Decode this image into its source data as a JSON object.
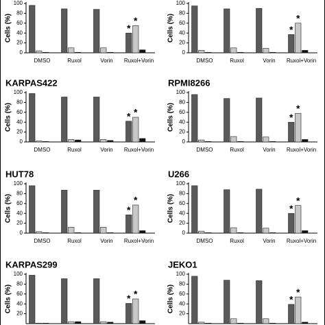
{
  "chart_data": [
    {
      "type": "bar",
      "y_label": "Cells (%)",
      "categories": [
        "DMSO",
        "Ruxol",
        "Vorin",
        "Ruxol+Vorin"
      ],
      "ylim": [
        0,
        100
      ],
      "yticks": [
        0,
        20,
        40,
        60,
        80,
        100
      ],
      "series": [
        {
          "color": "#5a5a5a",
          "values": [
            96,
            89,
            88,
            40
          ],
          "markers": [
            null,
            null,
            null,
            "*"
          ]
        },
        {
          "color": "#c8c8c8",
          "values": [
            4,
            10,
            10,
            55
          ],
          "markers": [
            null,
            null,
            null,
            "*"
          ]
        },
        {
          "color": "#111111",
          "values": [
            1,
            1,
            1,
            6
          ],
          "markers": [
            null,
            null,
            null,
            null
          ]
        }
      ]
    },
    {
      "type": "bar",
      "y_label": "Cells (%)",
      "categories": [
        "DMSO",
        "Ruxol",
        "Vorin",
        "Ruxol+Vorin"
      ],
      "ylim": [
        0,
        100
      ],
      "yticks": [
        0,
        20,
        40,
        60,
        80,
        100
      ],
      "series": [
        {
          "color": "#5a5a5a",
          "values": [
            95,
            89,
            90,
            37
          ],
          "markers": [
            null,
            null,
            null,
            "*"
          ]
        },
        {
          "color": "#c8c8c8",
          "values": [
            5,
            10,
            9,
            60
          ],
          "markers": [
            null,
            null,
            null,
            "*"
          ]
        },
        {
          "color": "#111111",
          "values": [
            1,
            1,
            1,
            5
          ],
          "markers": [
            null,
            null,
            null,
            null
          ]
        }
      ]
    },
    {
      "type": "bar",
      "title": "KARPAS422",
      "y_label": "Cells (%)",
      "categories": [
        "DMSO",
        "Ruxol",
        "Vorin",
        "Ruxol+Vorin"
      ],
      "ylim": [
        0,
        100
      ],
      "yticks": [
        0,
        20,
        40,
        60,
        80,
        100
      ],
      "series": [
        {
          "color": "#5a5a5a",
          "values": [
            98,
            91,
            91,
            42
          ],
          "markers": [
            null,
            null,
            null,
            "*"
          ]
        },
        {
          "color": "#c8c8c8",
          "values": [
            2,
            5,
            5,
            50
          ],
          "markers": [
            null,
            null,
            null,
            "*"
          ]
        },
        {
          "color": "#111111",
          "values": [
            1,
            4,
            3,
            7
          ],
          "markers": [
            null,
            null,
            null,
            null
          ]
        }
      ]
    },
    {
      "type": "bar",
      "title": "RPMI8266",
      "y_label": "Cells (%)",
      "categories": [
        "DMSO",
        "Ruxol",
        "Vorin",
        "Ruxol+Vorin"
      ],
      "ylim": [
        0,
        100
      ],
      "yticks": [
        0,
        20,
        40,
        60,
        80,
        100
      ],
      "series": [
        {
          "color": "#5a5a5a",
          "values": [
            96,
            88,
            89,
            40
          ],
          "markers": [
            null,
            null,
            null,
            "*"
          ]
        },
        {
          "color": "#c8c8c8",
          "values": [
            4,
            11,
            10,
            58
          ],
          "markers": [
            null,
            null,
            null,
            "*"
          ]
        },
        {
          "color": "#111111",
          "values": [
            1,
            1,
            1,
            5
          ],
          "markers": [
            null,
            null,
            null,
            null
          ]
        }
      ]
    },
    {
      "type": "bar",
      "title": "HUT78",
      "y_label": "Cells (%)",
      "categories": [
        "DMSO",
        "Ruxol",
        "Vorin",
        "Ruxol+Vorin"
      ],
      "ylim": [
        0,
        100
      ],
      "yticks": [
        0,
        20,
        40,
        60,
        80,
        100
      ],
      "series": [
        {
          "color": "#5a5a5a",
          "values": [
            96,
            87,
            87,
            37
          ],
          "markers": [
            null,
            null,
            null,
            "*"
          ]
        },
        {
          "color": "#c8c8c8",
          "values": [
            3,
            12,
            12,
            57
          ],
          "markers": [
            null,
            null,
            null,
            "*"
          ]
        },
        {
          "color": "#111111",
          "values": [
            1,
            1,
            1,
            5
          ],
          "markers": [
            null,
            null,
            null,
            null
          ]
        }
      ]
    },
    {
      "type": "bar",
      "title": "U266",
      "y_label": "Cells (%)",
      "categories": [
        "DMSO",
        "Ruxol",
        "Vorin",
        "Ruxol+Vorin"
      ],
      "ylim": [
        0,
        100
      ],
      "yticks": [
        0,
        20,
        40,
        60,
        80,
        100
      ],
      "series": [
        {
          "color": "#5a5a5a",
          "values": [
            96,
            88,
            89,
            40
          ],
          "markers": [
            null,
            null,
            null,
            "*"
          ]
        },
        {
          "color": "#c8c8c8",
          "values": [
            4,
            11,
            10,
            56
          ],
          "markers": [
            null,
            null,
            null,
            "*"
          ]
        },
        {
          "color": "#111111",
          "values": [
            1,
            1,
            1,
            5
          ],
          "markers": [
            null,
            null,
            null,
            null
          ]
        }
      ]
    },
    {
      "type": "bar",
      "title": "KARPAS299",
      "y_label": "Cells (%)",
      "categories": [
        null,
        null,
        null,
        null
      ],
      "ylim": [
        0,
        100
      ],
      "yticks": [
        20,
        40,
        60,
        80,
        100
      ],
      "series": [
        {
          "color": "#5a5a5a",
          "values": [
            98,
            91,
            91,
            41
          ],
          "markers": [
            null,
            null,
            null,
            "*"
          ]
        },
        {
          "color": "#c8c8c8",
          "values": [
            1,
            4,
            4,
            50
          ],
          "markers": [
            null,
            null,
            null,
            "*"
          ]
        },
        {
          "color": "#111111",
          "values": [
            1,
            4,
            3,
            6
          ],
          "markers": [
            null,
            null,
            null,
            null
          ]
        }
      ]
    },
    {
      "type": "bar",
      "title": "JEKO1",
      "y_label": "Cells (%)",
      "categories": [
        null,
        null,
        null,
        null
      ],
      "ylim": [
        0,
        100
      ],
      "yticks": [
        20,
        40,
        60,
        80,
        100
      ],
      "series": [
        {
          "color": "#5a5a5a",
          "values": [
            96,
            88,
            87,
            39
          ],
          "markers": [
            null,
            null,
            null,
            "*"
          ]
        },
        {
          "color": "#c8c8c8",
          "values": [
            3,
            10,
            10,
            54
          ],
          "markers": [
            null,
            null,
            null,
            "*"
          ]
        },
        {
          "color": "#111111",
          "values": [
            1,
            1,
            1,
            3
          ],
          "markers": [
            null,
            null,
            null,
            null
          ]
        }
      ]
    }
  ]
}
